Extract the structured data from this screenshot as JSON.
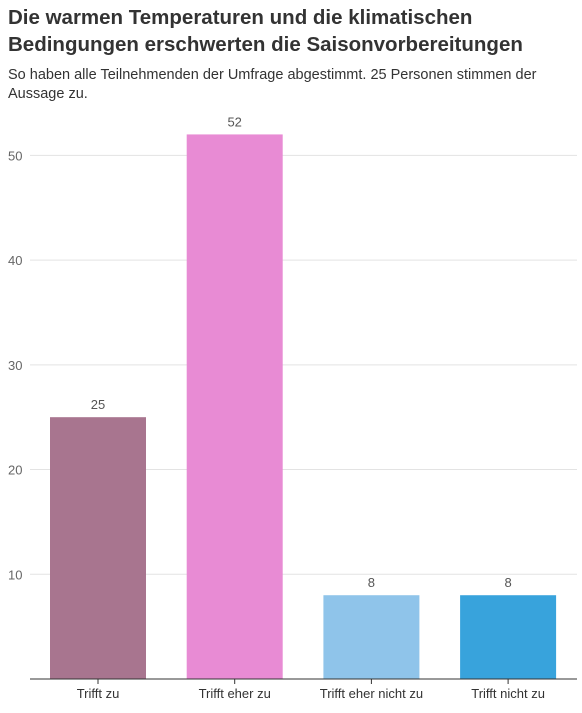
{
  "title": "Die warmen Temperaturen und die klimatischen Bedingungen erschwerten die Saisonvorbereitungen",
  "subtitle": "So haben alle Teilnehmenden der Umfrage abgestimmt. 25 Personen stimmen der Aussage zu.",
  "chart_data": {
    "type": "bar",
    "categories": [
      "Trifft zu",
      "Trifft eher zu",
      "Trifft eher nicht zu",
      "Trifft nicht zu"
    ],
    "values": [
      25,
      52,
      8,
      8
    ],
    "colors": [
      "#a8758f",
      "#e88bd4",
      "#8fc4ea",
      "#38a3dc"
    ],
    "ylim": [
      0,
      55
    ],
    "yticks": [
      10,
      20,
      30,
      40,
      50
    ],
    "grid": true,
    "xlabel": "",
    "ylabel": ""
  }
}
